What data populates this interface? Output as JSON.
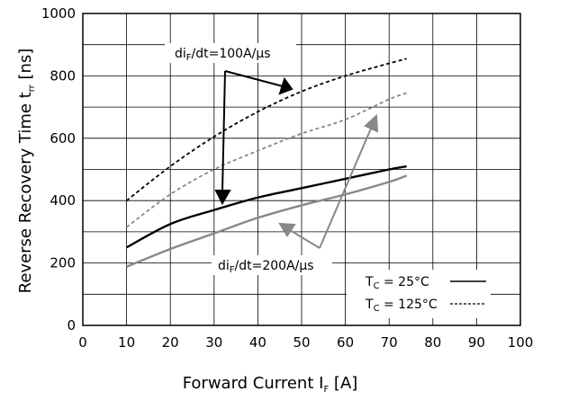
{
  "chart_data": {
    "type": "line",
    "xlabel": "Forward Current I",
    "xlabel_sub": "F",
    "xlabel_unit": " [A]",
    "ylabel": "Reverse Recovery Time t",
    "ylabel_sub": "rr",
    "ylabel_unit": " [ns]",
    "xlim": [
      0,
      100
    ],
    "ylim": [
      0,
      1000
    ],
    "xticks": [
      "0",
      "10",
      "20",
      "30",
      "40",
      "50",
      "60",
      "70",
      "80",
      "90",
      "100"
    ],
    "yticks": [
      "0",
      "200",
      "400",
      "600",
      "800",
      "1000"
    ],
    "grid": true,
    "series": [
      {
        "color": "#000000",
        "style": "dashed",
        "x": [
          10,
          20,
          30,
          40,
          50,
          60,
          70,
          74
        ],
        "y": [
          400,
          510,
          605,
          685,
          750,
          800,
          840,
          855
        ]
      },
      {
        "color": "#888888",
        "style": "dashed",
        "x": [
          10,
          20,
          30,
          40,
          50,
          60,
          70,
          74
        ],
        "y": [
          315,
          420,
          500,
          560,
          615,
          660,
          725,
          745
        ]
      },
      {
        "color": "#000000",
        "style": "solid",
        "x": [
          10,
          20,
          30,
          40,
          50,
          60,
          70,
          74
        ],
        "y": [
          250,
          325,
          370,
          410,
          440,
          470,
          500,
          510
        ]
      },
      {
        "color": "#888888",
        "style": "solid",
        "x": [
          10,
          20,
          30,
          40,
          50,
          60,
          70,
          74
        ],
        "y": [
          188,
          245,
          295,
          345,
          385,
          420,
          460,
          480
        ]
      }
    ],
    "annotations": [
      {
        "pre": "di",
        "sub": "F",
        "post": "/dt=100A/μs",
        "color": "#000000"
      },
      {
        "pre": "di",
        "sub": "F",
        "post": "/dt=200A/μs",
        "color": "#888888"
      }
    ],
    "legend": {
      "placement": "bottom-right",
      "entries": [
        {
          "label_pre": "T",
          "label_sub": "C",
          "label_post": " = 25°C",
          "style": "solid"
        },
        {
          "label_pre": "T",
          "label_sub": "C",
          "label_post": " = 125°C",
          "style": "dashed"
        }
      ]
    }
  }
}
